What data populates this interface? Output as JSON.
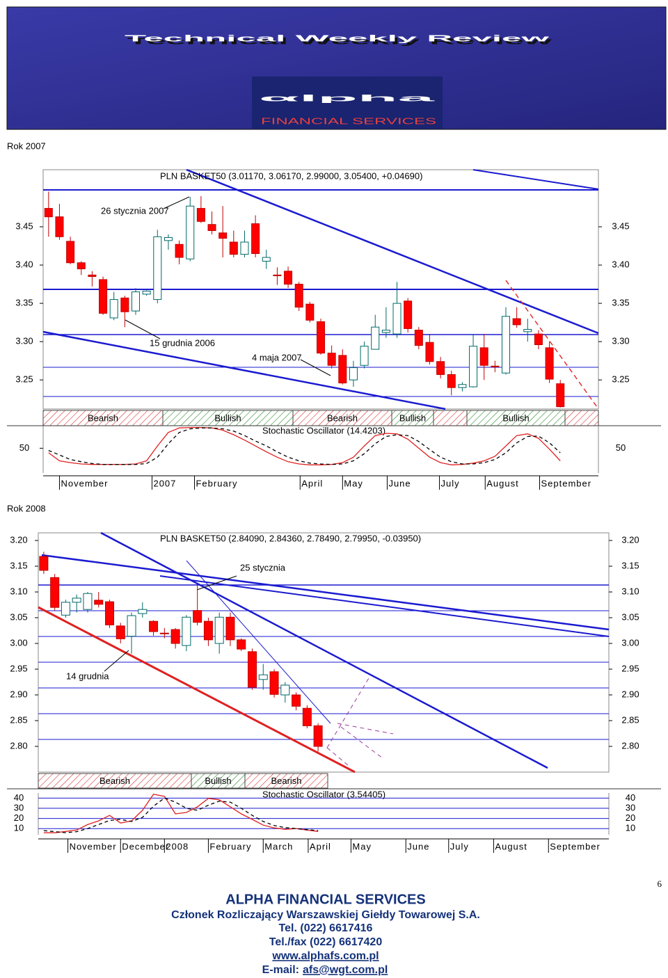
{
  "header": {
    "title": "Technical Weekly Review",
    "logo": "αlpha",
    "logo_sub": "FINANCIAL SERVICES"
  },
  "page_number": 6,
  "chart_data": [
    {
      "type": "candlestick",
      "section": "Rok 2007",
      "title": "PLN BASKET50 (3.01170, 3.06170, 2.99000, 3.05400, +0.04690)",
      "annotations": [
        "26 stycznia 2007",
        "15 grudnia 2006",
        "4 maja 2007"
      ],
      "up_color": "#ffffff",
      "down_color": "#ff0000",
      "open": [
        3.474,
        3.463,
        3.431,
        3.403,
        3.387,
        3.381,
        3.331,
        3.357,
        3.34,
        3.362,
        3.355,
        3.432,
        3.427,
        3.408,
        3.474,
        3.453,
        3.442,
        3.43,
        3.414,
        3.454,
        3.405,
        3.387,
        3.392,
        3.375,
        3.349,
        3.326,
        3.285,
        3.282,
        3.25,
        3.269,
        3.29,
        3.312,
        3.31,
        3.353,
        3.315,
        3.299,
        3.274,
        3.257,
        3.24,
        3.241,
        3.292,
        3.268,
        3.259,
        3.33,
        3.313,
        3.31,
        3.292,
        3.245
      ],
      "high": [
        3.496,
        3.48,
        3.437,
        3.405,
        3.392,
        3.385,
        3.365,
        3.36,
        3.37,
        3.367,
        3.446,
        3.44,
        3.432,
        3.489,
        3.49,
        3.47,
        3.477,
        3.445,
        3.445,
        3.465,
        3.42,
        3.397,
        3.398,
        3.378,
        3.352,
        3.33,
        3.295,
        3.29,
        3.275,
        3.3,
        3.335,
        3.345,
        3.378,
        3.357,
        3.319,
        3.31,
        3.28,
        3.262,
        3.247,
        3.31,
        3.31,
        3.275,
        3.345,
        3.345,
        3.33,
        3.315,
        3.3,
        3.25
      ],
      "low": [
        3.437,
        3.433,
        3.401,
        3.387,
        3.372,
        3.335,
        3.328,
        3.319,
        3.335,
        3.36,
        3.35,
        3.42,
        3.401,
        3.405,
        3.455,
        3.44,
        3.41,
        3.41,
        3.41,
        3.41,
        3.395,
        3.374,
        3.37,
        3.34,
        3.325,
        3.283,
        3.265,
        3.244,
        3.241,
        3.265,
        3.29,
        3.305,
        3.305,
        3.312,
        3.29,
        3.27,
        3.252,
        3.23,
        3.235,
        3.24,
        3.25,
        3.26,
        3.257,
        3.318,
        3.3,
        3.29,
        3.246,
        3.214
      ],
      "close": [
        3.463,
        3.437,
        3.403,
        3.395,
        3.385,
        3.337,
        3.355,
        3.339,
        3.365,
        3.366,
        3.437,
        3.436,
        3.41,
        3.477,
        3.457,
        3.445,
        3.435,
        3.414,
        3.43,
        3.415,
        3.41,
        3.386,
        3.375,
        3.345,
        3.328,
        3.285,
        3.269,
        3.246,
        3.266,
        3.294,
        3.319,
        3.315,
        3.35,
        3.317,
        3.295,
        3.274,
        3.257,
        3.24,
        3.244,
        3.294,
        3.269,
        3.267,
        3.333,
        3.322,
        3.316,
        3.296,
        3.251,
        3.215
      ],
      "xlim": [
        -0.5,
        50.5
      ],
      "xticks": [
        {
          "value": 1,
          "label": "November"
        },
        {
          "value": 9.5,
          "label": "2007"
        },
        {
          "value": 13.4,
          "label": "February"
        },
        {
          "value": 23.1,
          "label": "April"
        },
        {
          "value": 27,
          "label": "May"
        },
        {
          "value": 31.1,
          "label": "June"
        },
        {
          "value": 35.9,
          "label": "July"
        },
        {
          "value": 40.1,
          "label": "August"
        },
        {
          "value": 45.1,
          "label": "September"
        }
      ],
      "ylim": [
        3.212,
        3.5245
      ],
      "yticks": [
        3.25,
        {
          "value": 3.3,
          "label": "3.30"
        },
        3.35,
        {
          "value": 3.4,
          "label": "3.40"
        },
        3.45
      ],
      "signals": [
        "Bearish",
        "Bullish",
        "Bearish",
        "Bullish",
        "Bullish"
      ],
      "oscillator": {
        "title": "Stochastic Oscillator (14.4203)",
        "ylim": [
          -5,
          100
        ],
        "yticks": [
          50
        ],
        "grid": false,
        "series": [
          {
            "color": "#e02020",
            "dashed": false,
            "values": [
              40,
              22,
              18,
              15,
              14,
              14,
              14,
              14,
              15,
              22,
              55,
              85,
              95,
              96,
              96,
              95,
              90,
              80,
              68,
              55,
              42,
              30,
              20,
              15,
              13,
              13,
              14,
              18,
              30,
              55,
              78,
              83,
              82,
              70,
              50,
              30,
              18,
              13,
              14,
              17,
              22,
              32,
              55,
              78,
              82,
              72,
              48,
              22
            ]
          },
          {
            "color": "#000000",
            "dashed": true,
            "values": [
              45,
              35,
              25,
              20,
              16,
              14,
              14,
              14,
              14,
              16,
              30,
              60,
              85,
              93,
              95,
              95,
              93,
              88,
              78,
              66,
              55,
              42,
              30,
              22,
              17,
              15,
              14,
              15,
              22,
              38,
              60,
              76,
              80,
              78,
              65,
              47,
              30,
              20,
              15,
              15,
              18,
              25,
              40,
              62,
              76,
              77,
              62,
              40
            ]
          }
        ]
      }
    },
    {
      "type": "candlestick",
      "section": "Rok 2008",
      "title": "PLN BASKET50 (2.84090, 2.84360, 2.78490, 2.79950, -0.03950)",
      "annotations": [
        "25 stycznia",
        "14 grudnia"
      ],
      "up_color": "#ffffff",
      "down_color": "#ff0000",
      "open": [
        3.169,
        3.128,
        3.055,
        3.08,
        3.066,
        3.084,
        3.081,
        3.034,
        3.014,
        3.058,
        3.043,
        3.02,
        3.027,
        2.996,
        3.064,
        3.043,
        3.0,
        3.051,
        3.007,
        2.984,
        2.93,
        2.945,
        2.9,
        2.9,
        2.874,
        2.84
      ],
      "high": [
        3.178,
        3.135,
        3.085,
        3.095,
        3.1,
        3.1,
        3.085,
        3.04,
        3.06,
        3.08,
        3.045,
        3.03,
        3.03,
        3.055,
        3.115,
        3.05,
        3.06,
        3.06,
        3.01,
        2.99,
        2.96,
        2.95,
        2.925,
        2.905,
        2.88,
        2.845
      ],
      "low": [
        3.135,
        3.064,
        3.05,
        3.06,
        3.06,
        3.07,
        3.03,
        3.0,
        2.98,
        3.05,
        3.015,
        3.01,
        2.99,
        2.985,
        3.035,
        2.995,
        2.98,
        2.995,
        2.985,
        2.91,
        2.91,
        2.895,
        2.885,
        2.87,
        2.835,
        2.79
      ],
      "close": [
        3.142,
        3.07,
        3.08,
        3.088,
        3.097,
        3.076,
        3.036,
        3.009,
        3.054,
        3.066,
        3.023,
        3.019,
        3.0,
        3.051,
        3.041,
        3.007,
        3.051,
        3.007,
        2.989,
        2.915,
        2.939,
        2.901,
        2.919,
        2.878,
        2.84,
        2.8
      ],
      "xlim": [
        -0.5,
        51.5
      ],
      "xticks": [
        {
          "value": 2.2,
          "label": "November"
        },
        {
          "value": 7,
          "label": "December"
        },
        {
          "value": 11,
          "label": "2008"
        },
        {
          "value": 15,
          "label": "February"
        },
        {
          "value": 20,
          "label": "March"
        },
        {
          "value": 24.1,
          "label": "April"
        },
        {
          "value": 28,
          "label": "May"
        },
        {
          "value": 33,
          "label": "June"
        },
        {
          "value": 36.9,
          "label": "July"
        },
        {
          "value": 41,
          "label": "August"
        },
        {
          "value": 46,
          "label": "September"
        }
      ],
      "ylim": [
        2.75,
        3.2149
      ],
      "yticks": [
        {
          "value": 2.8,
          "label": "2.80"
        },
        2.85,
        {
          "value": 2.9,
          "label": "2.90"
        },
        2.95,
        {
          "value": 3,
          "label": "3.00"
        },
        3.05,
        {
          "value": 3.1,
          "label": "3.10"
        },
        3.15,
        {
          "value": 3.2,
          "label": "3.20"
        }
      ],
      "signals": [
        "Bearish",
        "Bullish",
        "Bearish"
      ],
      "oscillator": {
        "title": "Stochastic Oscillator (3.54405)",
        "ylim": [
          4,
          45
        ],
        "yticks": [
          10,
          20,
          30,
          40
        ],
        "grid": true,
        "series": [
          {
            "color": "#e02020",
            "dashed": false,
            "values": [
              5.9,
              5.9,
              7.2,
              8.6,
              14,
              17.6,
              23,
              15.5,
              17.6,
              28,
              43.8,
              41.7,
              24.5,
              25.9,
              31.4,
              39.7,
              38.3,
              31.4,
              24.5,
              19,
              13.4,
              10.7,
              9.3,
              10,
              8.6,
              7.2
            ]
          },
          {
            "color": "#000000",
            "dashed": true,
            "values": [
              8,
              7,
              6,
              7,
              10,
              14,
              18,
              19,
              17,
              21,
              32,
              40,
              36,
              30,
              28,
              33,
              37,
              36,
              30,
              23,
              17,
              13,
              11,
              10,
              9,
              8
            ]
          }
        ]
      }
    }
  ],
  "footer": {
    "company": "ALPHA FINANCIAL SERVICES",
    "membership": "Członek Rozliczający Warszawskiej Giełdy Towarowej S.A.",
    "tel": "Tel. (022) 6617416",
    "fax": "Tel./fax (022) 6617420",
    "www": "www.alphafs.com.pl",
    "email_label": "E-mail:",
    "email": "afs@wgt.com.pl"
  }
}
